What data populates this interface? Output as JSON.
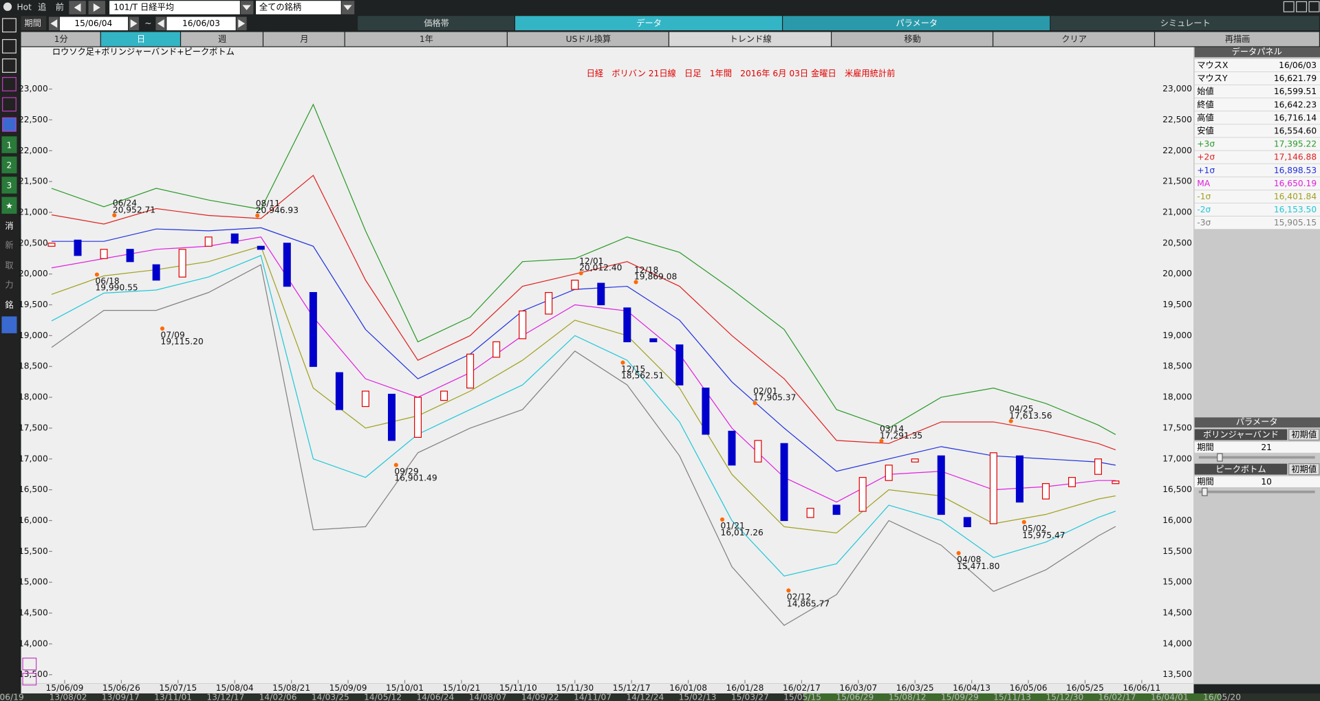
{
  "toolbar": {
    "hot": "Hot",
    "buttons": [
      "追",
      "前"
    ],
    "symbol": "101/T 日経平均",
    "universe": "全ての銘柄",
    "period_label": "期間",
    "from": "15/06/04",
    "tilde": "~",
    "to": "16/06/03",
    "tabs": [
      "価格帯",
      "データ",
      "パラメータ",
      "シミュレート"
    ],
    "subtabs": [
      "1分",
      "日",
      "週",
      "月",
      "1年",
      "USドル換算",
      "トレンド線",
      "移動",
      "クリア",
      "再描画"
    ]
  },
  "sidebar": [
    "1",
    "2",
    "3",
    "★",
    "消",
    "新",
    "取",
    "力",
    "銘"
  ],
  "chart_data": {
    "type": "candlestick",
    "title": "日経　ボリバン 21日線　日足　1年間　2016年 6月 03日 金曜日　米雇用統計前",
    "subtitle": "ロウソク足+ボリンジャーバンド+ピークボトム",
    "xlim": [
      -7,
      254
    ],
    "ylim": [
      13360,
      23680
    ],
    "xticks": [
      {
        "value": 3,
        "label": "15/06/09"
      },
      {
        "value": 16,
        "label": "15/06/26"
      },
      {
        "value": 29,
        "label": "15/07/15"
      },
      {
        "value": 42,
        "label": "15/08/04"
      },
      {
        "value": 55,
        "label": "15/08/21"
      },
      {
        "value": 68,
        "label": "15/09/09"
      },
      {
        "value": 81,
        "label": "15/10/01"
      },
      {
        "value": 94,
        "label": "15/10/21"
      },
      {
        "value": 107,
        "label": "15/11/10"
      },
      {
        "value": 120,
        "label": "15/11/30"
      },
      {
        "value": 133,
        "label": "15/12/17"
      },
      {
        "value": 146,
        "label": "16/01/08"
      },
      {
        "value": 159,
        "label": "16/01/28"
      },
      {
        "value": 172,
        "label": "16/02/17"
      },
      {
        "value": 185,
        "label": "16/03/07"
      },
      {
        "value": 198,
        "label": "16/03/25"
      },
      {
        "value": 211,
        "label": "16/04/13"
      },
      {
        "value": 224,
        "label": "16/05/06"
      },
      {
        "value": 237,
        "label": "16/05/25"
      },
      {
        "value": 250,
        "label": "16/06/11"
      }
    ],
    "yticks": [
      {
        "value": 13500,
        "label": "13,500"
      },
      {
        "value": 14000,
        "label": "14,000"
      },
      {
        "value": 14500,
        "label": "14,500"
      },
      {
        "value": 15000,
        "label": "15,000"
      },
      {
        "value": 15500,
        "label": "15,500"
      },
      {
        "value": 16000,
        "label": "16,000"
      },
      {
        "value": 16500,
        "label": "16,500"
      },
      {
        "value": 17000,
        "label": "17,000"
      },
      {
        "value": 17500,
        "label": "17,500"
      },
      {
        "value": 18000,
        "label": "18,000"
      },
      {
        "value": 18500,
        "label": "18,500"
      },
      {
        "value": 19000,
        "label": "19,000"
      },
      {
        "value": 19500,
        "label": "19,500"
      },
      {
        "value": 20000,
        "label": "20,000"
      },
      {
        "value": 20500,
        "label": "20,500"
      },
      {
        "value": 21000,
        "label": "21,000"
      },
      {
        "value": 21500,
        "label": "21,500"
      },
      {
        "value": 22000,
        "label": "22,000"
      },
      {
        "value": 22500,
        "label": "22,500"
      },
      {
        "value": 23000,
        "label": "23,000"
      }
    ],
    "grid": false,
    "up_color": "#e00000",
    "down_color": "#0000cc",
    "peak_color": "#ff6a00",
    "title_color": "#e00000",
    "candles": {
      "x": [
        0,
        6,
        12,
        18,
        24,
        30,
        36,
        42,
        48,
        54,
        60,
        66,
        72,
        78,
        84,
        90,
        96,
        102,
        108,
        114,
        120,
        126,
        132,
        138,
        144,
        150,
        156,
        162,
        168,
        174,
        180,
        186,
        192,
        198,
        204,
        210,
        216,
        222,
        228,
        234,
        240,
        244
      ],
      "open": [
        20450,
        20550,
        20250,
        20400,
        20150,
        19950,
        20450,
        20650,
        20450,
        20500,
        19700,
        18400,
        17850,
        18050,
        17350,
        17950,
        18150,
        18650,
        18950,
        19350,
        19750,
        19850,
        19450,
        18950,
        18850,
        18150,
        17450,
        16950,
        17250,
        16050,
        16250,
        16150,
        16650,
        16950,
        17050,
        16050,
        15950,
        17050,
        16350,
        16550,
        16750,
        16599.51
      ],
      "close": [
        20500,
        20300,
        20400,
        20200,
        19900,
        20400,
        20600,
        20500,
        20400,
        19800,
        18500,
        17800,
        18100,
        17300,
        18000,
        18100,
        18700,
        18900,
        19400,
        19700,
        19900,
        19500,
        18900,
        18900,
        18200,
        17400,
        16900,
        17300,
        16000,
        16200,
        16100,
        16700,
        16900,
        17000,
        16100,
        15900,
        17100,
        16300,
        16600,
        16700,
        17000,
        16642.23
      ]
    },
    "bands": {
      "x": [
        0,
        12,
        24,
        36,
        48,
        60,
        72,
        84,
        96,
        108,
        120,
        132,
        144,
        156,
        168,
        180,
        192,
        204,
        216,
        228,
        240,
        244
      ],
      "series": [
        {
          "name": "+3σ",
          "color": "#2a9a2a",
          "values": [
            21390,
            21090,
            21390,
            21200,
            21050,
            22750,
            20700,
            18900,
            19300,
            20200,
            20250,
            20600,
            20350,
            19750,
            19100,
            17800,
            17500,
            18000,
            18150,
            17900,
            17550,
            17395.22
          ]
        },
        {
          "name": "+2σ",
          "color": "#e02020",
          "values": [
            20960,
            20810,
            21060,
            20950,
            20900,
            21600,
            19900,
            18600,
            19000,
            19800,
            20000,
            20200,
            19800,
            19000,
            18300,
            17300,
            17250,
            17600,
            17600,
            17450,
            17250,
            17146.88
          ]
        },
        {
          "name": "+1σ",
          "color": "#2030e0",
          "values": [
            20530,
            20530,
            20730,
            20700,
            20750,
            20450,
            19100,
            18300,
            18700,
            19400,
            19750,
            19800,
            19250,
            18250,
            17500,
            16800,
            17000,
            17200,
            17050,
            17000,
            16950,
            16898.53
          ]
        },
        {
          "name": "MA",
          "color": "#e020e0",
          "values": [
            20100,
            20250,
            20400,
            20450,
            20600,
            19300,
            18300,
            18000,
            18400,
            19000,
            19500,
            19400,
            18700,
            17500,
            16700,
            16300,
            16750,
            16800,
            16500,
            16550,
            16650,
            16650.19
          ]
        },
        {
          "name": "-1σ",
          "color": "#a0a020",
          "values": [
            19670,
            19970,
            20070,
            20200,
            20450,
            18150,
            17500,
            17700,
            18100,
            18600,
            19250,
            19000,
            18150,
            16750,
            15900,
            15800,
            16500,
            16400,
            15950,
            16100,
            16350,
            16401.84
          ]
        },
        {
          "name": "-2σ",
          "color": "#20c8d8",
          "values": [
            19240,
            19690,
            19740,
            19950,
            20300,
            17000,
            16700,
            17400,
            17800,
            18200,
            19000,
            18600,
            17600,
            16000,
            15100,
            15300,
            16250,
            16000,
            15400,
            15650,
            16050,
            16153.5
          ]
        },
        {
          "name": "-3σ",
          "color": "#808080",
          "values": [
            18810,
            19410,
            19410,
            19700,
            20150,
            15850,
            15900,
            17100,
            17500,
            17800,
            18750,
            18200,
            17050,
            15250,
            14300,
            14800,
            16000,
            15600,
            14850,
            15200,
            15750,
            15905.15
          ]
        }
      ]
    },
    "peaks": {
      "x": [
        10.4,
        14.4,
        25.4,
        47.2,
        79,
        121.4,
        131,
        134,
        153.8,
        161.3,
        169,
        190.3,
        208,
        220,
        223
      ],
      "dates": [
        "06/18",
        "06/24",
        "07/09",
        "08/11",
        "09/29",
        "12/01",
        "12/15",
        "12/18",
        "01/21",
        "02/01",
        "02/12",
        "03/14",
        "04/08",
        "04/25",
        "05/02"
      ],
      "values": [
        19990.55,
        20952.71,
        19115.2,
        20946.93,
        16901.49,
        20012.4,
        18562.51,
        19869.08,
        16017.26,
        17905.37,
        14865.77,
        17291.35,
        15471.8,
        17613.56,
        15975.47
      ],
      "value_labels": [
        "19,990.55",
        "20,952.71",
        "19,115.20",
        "20,946.93",
        "16,901.49",
        "20,012.40",
        "18,562.51",
        "19,869.08",
        "16,017.26",
        "17,905.37",
        "14,865.77",
        "17,291.35",
        "15,471.80",
        "17,613.56",
        "15,975.47"
      ]
    }
  },
  "panel": {
    "title": "データパネル",
    "rows": [
      {
        "label": "マウスX",
        "value": "16/06/03",
        "color": "#000000"
      },
      {
        "label": "マウスY",
        "value": "16,621.79",
        "color": "#000000"
      },
      {
        "label": "始値",
        "value": "16,599.51",
        "color": "#000000"
      },
      {
        "label": "終値",
        "value": "16,642.23",
        "color": "#000000"
      },
      {
        "label": "高値",
        "value": "16,716.14",
        "color": "#000000"
      },
      {
        "label": "安値",
        "value": "16,554.60",
        "color": "#000000"
      },
      {
        "label": "+3σ",
        "value": "17,395.22",
        "color": "#2a9a2a"
      },
      {
        "label": "+2σ",
        "value": "17,146.88",
        "color": "#e02020"
      },
      {
        "label": "+1σ",
        "value": "16,898.53",
        "color": "#2030e0"
      },
      {
        "label": "MA",
        "value": "16,650.19",
        "color": "#e020e0"
      },
      {
        "label": "-1σ",
        "value": "16,401.84",
        "color": "#a0a020"
      },
      {
        "label": "-2σ",
        "value": "16,153.50",
        "color": "#20c8d8"
      },
      {
        "label": "-3σ",
        "value": "15,905.15",
        "color": "#808080"
      }
    ],
    "param_title": "パラメータ",
    "params": [
      {
        "name": "ボリンジャーバンド",
        "reset": "初期値",
        "label": "期間",
        "value": "21"
      },
      {
        "name": "ピークボトム",
        "reset": "初期値",
        "label": "期間",
        "value": "10"
      }
    ]
  },
  "overview_dates": [
    "06/19",
    "13/08/02",
    "13/09/17",
    "13/11/01",
    "13/12/17",
    "14/02/06",
    "14/03/25",
    "14/05/12",
    "14/06/24",
    "14/08/07",
    "14/09/22",
    "14/11/07",
    "14/12/24",
    "15/02/13",
    "15/03/27",
    "15/05/15",
    "15/06/29",
    "15/08/12",
    "15/09/29",
    "15/11/13",
    "15/12/30",
    "16/02/17",
    "16/04/01",
    "16/05/20"
  ]
}
